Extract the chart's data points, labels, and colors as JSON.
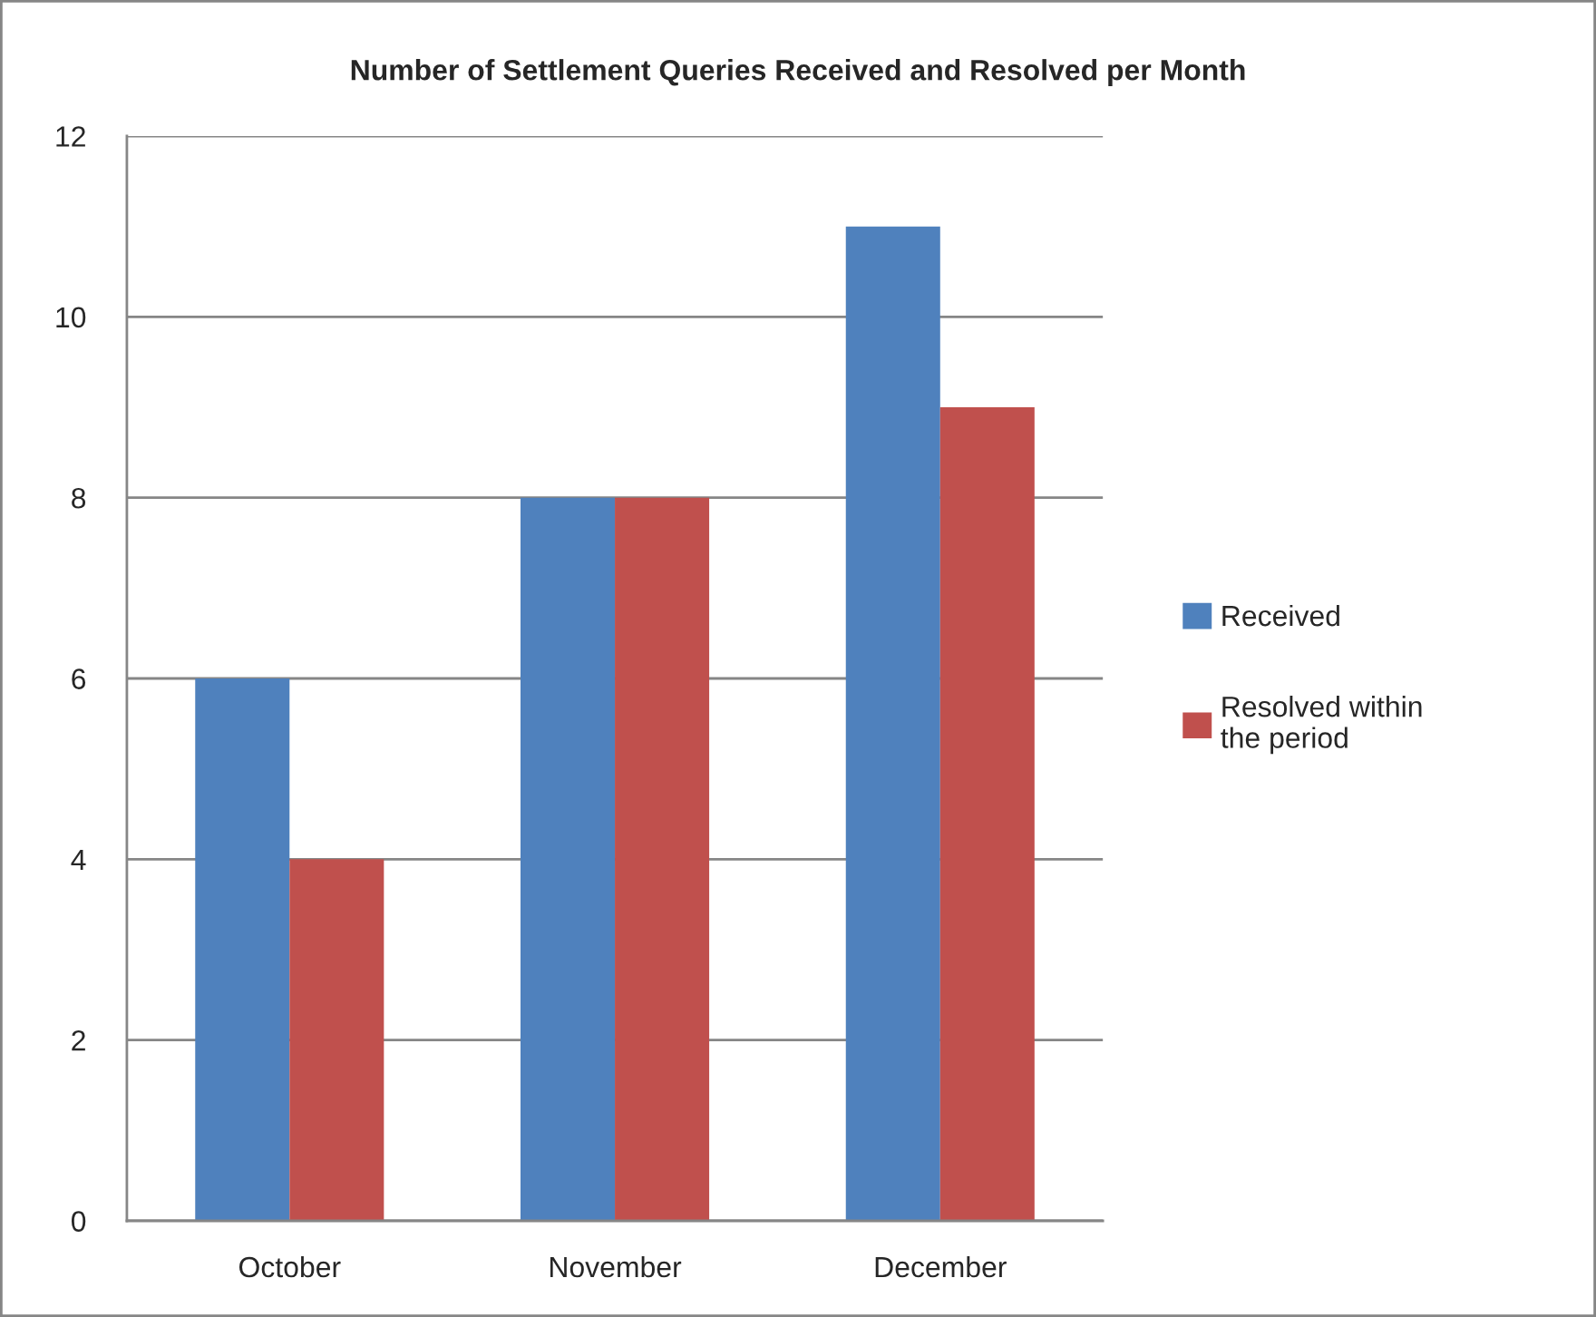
{
  "chart_data": {
    "type": "bar",
    "title": "Number of Settlement Queries Received and Resolved per Month",
    "categories": [
      "October",
      "November",
      "December"
    ],
    "series": [
      {
        "name": "Received",
        "color": "#4f81bd",
        "values": [
          6,
          8,
          11
        ]
      },
      {
        "name": "Resolved within the period",
        "color": "#c0504d",
        "values": [
          4,
          8,
          9
        ]
      }
    ],
    "ylim": [
      0,
      12
    ],
    "yticks": [
      0,
      2,
      4,
      6,
      8,
      10,
      12
    ],
    "grid": "y",
    "legend": "right"
  }
}
